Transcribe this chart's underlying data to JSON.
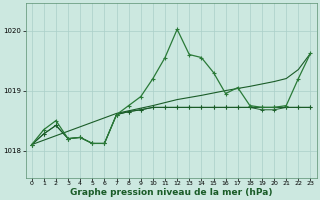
{
  "background_color": "#cce8e0",
  "grid_color": "#aacfc8",
  "line_color_dark": "#1a5c28",
  "line_color_medium": "#2a7a38",
  "xlabel": "Graphe pression niveau de la mer (hPa)",
  "xlabel_fontsize": 6.5,
  "yticks": [
    1018,
    1019,
    1020
  ],
  "xticks": [
    0,
    1,
    2,
    3,
    4,
    5,
    6,
    7,
    8,
    9,
    10,
    11,
    12,
    13,
    14,
    15,
    16,
    17,
    18,
    19,
    20,
    21,
    22,
    23
  ],
  "xlim": [
    -0.5,
    23.5
  ],
  "ylim": [
    1017.55,
    1020.45
  ],
  "series_main": {
    "x": [
      0,
      1,
      2,
      3,
      4,
      5,
      6,
      7,
      8,
      9,
      10,
      11,
      12,
      13,
      14,
      15,
      16,
      17,
      18,
      19,
      20,
      21,
      22,
      23
    ],
    "y": [
      1018.1,
      1018.35,
      1018.5,
      1018.2,
      1018.22,
      1018.12,
      1018.12,
      1018.6,
      1018.75,
      1018.9,
      1019.2,
      1019.55,
      1020.02,
      1019.6,
      1019.55,
      1019.3,
      1018.95,
      1019.05,
      1018.75,
      1018.72,
      1018.72,
      1018.75,
      1019.2,
      1019.62
    ]
  },
  "series_diagonal": {
    "x": [
      0,
      7,
      10,
      12,
      14,
      16,
      18,
      20,
      21,
      22,
      23
    ],
    "y": [
      1018.1,
      1018.62,
      1018.75,
      1018.85,
      1018.92,
      1019.0,
      1019.07,
      1019.15,
      1019.2,
      1019.35,
      1019.62
    ]
  },
  "series_flat1": {
    "x": [
      0,
      1,
      2,
      3,
      4,
      5,
      6,
      7,
      8,
      9,
      10,
      11,
      12,
      13,
      14,
      15,
      16,
      17,
      18,
      19,
      20,
      21,
      22,
      23
    ],
    "y": [
      1018.1,
      1018.28,
      1018.42,
      1018.2,
      1018.22,
      1018.12,
      1018.12,
      1018.6,
      1018.65,
      1018.68,
      1018.72,
      1018.72,
      1018.72,
      1018.72,
      1018.72,
      1018.72,
      1018.72,
      1018.72,
      1018.72,
      1018.72,
      1018.72,
      1018.72,
      1018.72,
      1018.72
    ]
  },
  "series_flat2": {
    "x": [
      0,
      1,
      2,
      3,
      4,
      5,
      6,
      7,
      8,
      9,
      10,
      11,
      12,
      13,
      14,
      15,
      16,
      17,
      18,
      19,
      20,
      21,
      22,
      23
    ],
    "y": [
      1018.1,
      1018.28,
      1018.42,
      1018.2,
      1018.22,
      1018.12,
      1018.12,
      1018.6,
      1018.65,
      1018.68,
      1018.72,
      1018.72,
      1018.72,
      1018.72,
      1018.72,
      1018.72,
      1018.72,
      1018.72,
      1018.72,
      1018.68,
      1018.68,
      1018.72,
      1018.72,
      1018.72
    ]
  }
}
